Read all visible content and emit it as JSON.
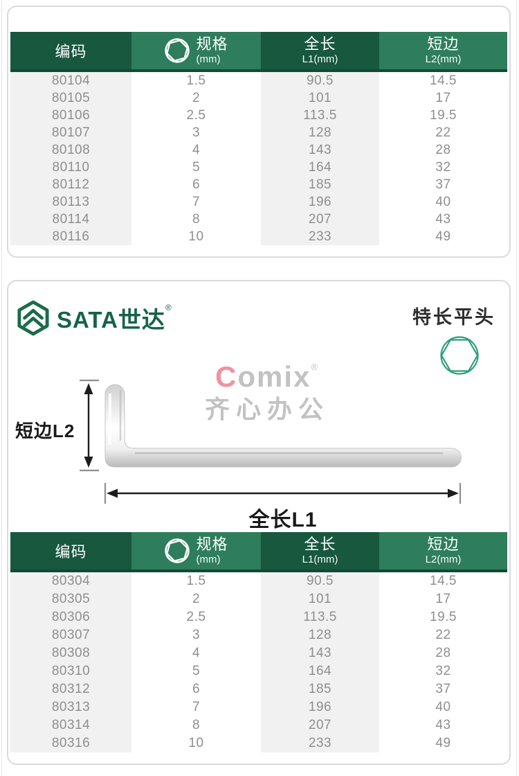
{
  "brand": {
    "logo_text": "SATA世达",
    "registered": "®"
  },
  "product": {
    "type_title": "特长平头"
  },
  "watermark": {
    "c": "C",
    "rest": "omix",
    "registered": "®",
    "subtitle": "齐心办公"
  },
  "diagram": {
    "short_side_label": "短边L2",
    "total_length_label": "全长L1"
  },
  "icons": {
    "brand_mark": "sata-logo-icon",
    "spec_header": "hex-socket-icon",
    "product_profile": "hex-profile-icon"
  },
  "colors": {
    "header_dark_green": "#17583F",
    "header_mid_green": "#2E7D5C",
    "stripe_gray": "#F1F1F2",
    "row_text_gray": "#8E8E8E",
    "brand_green": "#166249",
    "hex_icon_green": "#2F9D7B",
    "watermark_pink": "#F0919F",
    "watermark_gray": "#C2C2C2"
  },
  "table_header": {
    "code": "编码",
    "spec_line1": "规格",
    "spec_line2": "(mm)",
    "length_line1": "全长",
    "length_line2": "L1(mm)",
    "short_line1": "短边",
    "short_line2": "L2(mm)"
  },
  "tables": [
    {
      "rows": [
        [
          "80104",
          "1.5",
          "90.5",
          "14.5"
        ],
        [
          "80105",
          "2",
          "101",
          "17"
        ],
        [
          "80106",
          "2.5",
          "113.5",
          "19.5"
        ],
        [
          "80107",
          "3",
          "128",
          "22"
        ],
        [
          "80108",
          "4",
          "143",
          "28"
        ],
        [
          "80110",
          "5",
          "164",
          "32"
        ],
        [
          "80112",
          "6",
          "185",
          "37"
        ],
        [
          "80113",
          "7",
          "196",
          "40"
        ],
        [
          "80114",
          "8",
          "207",
          "43"
        ],
        [
          "80116",
          "10",
          "233",
          "49"
        ]
      ]
    },
    {
      "rows": [
        [
          "80304",
          "1.5",
          "90.5",
          "14.5"
        ],
        [
          "80305",
          "2",
          "101",
          "17"
        ],
        [
          "80306",
          "2.5",
          "113.5",
          "19.5"
        ],
        [
          "80307",
          "3",
          "128",
          "22"
        ],
        [
          "80308",
          "4",
          "143",
          "28"
        ],
        [
          "80310",
          "5",
          "164",
          "32"
        ],
        [
          "80312",
          "6",
          "185",
          "37"
        ],
        [
          "80313",
          "7",
          "196",
          "40"
        ],
        [
          "80314",
          "8",
          "207",
          "43"
        ],
        [
          "80316",
          "10",
          "233",
          "49"
        ]
      ]
    }
  ]
}
